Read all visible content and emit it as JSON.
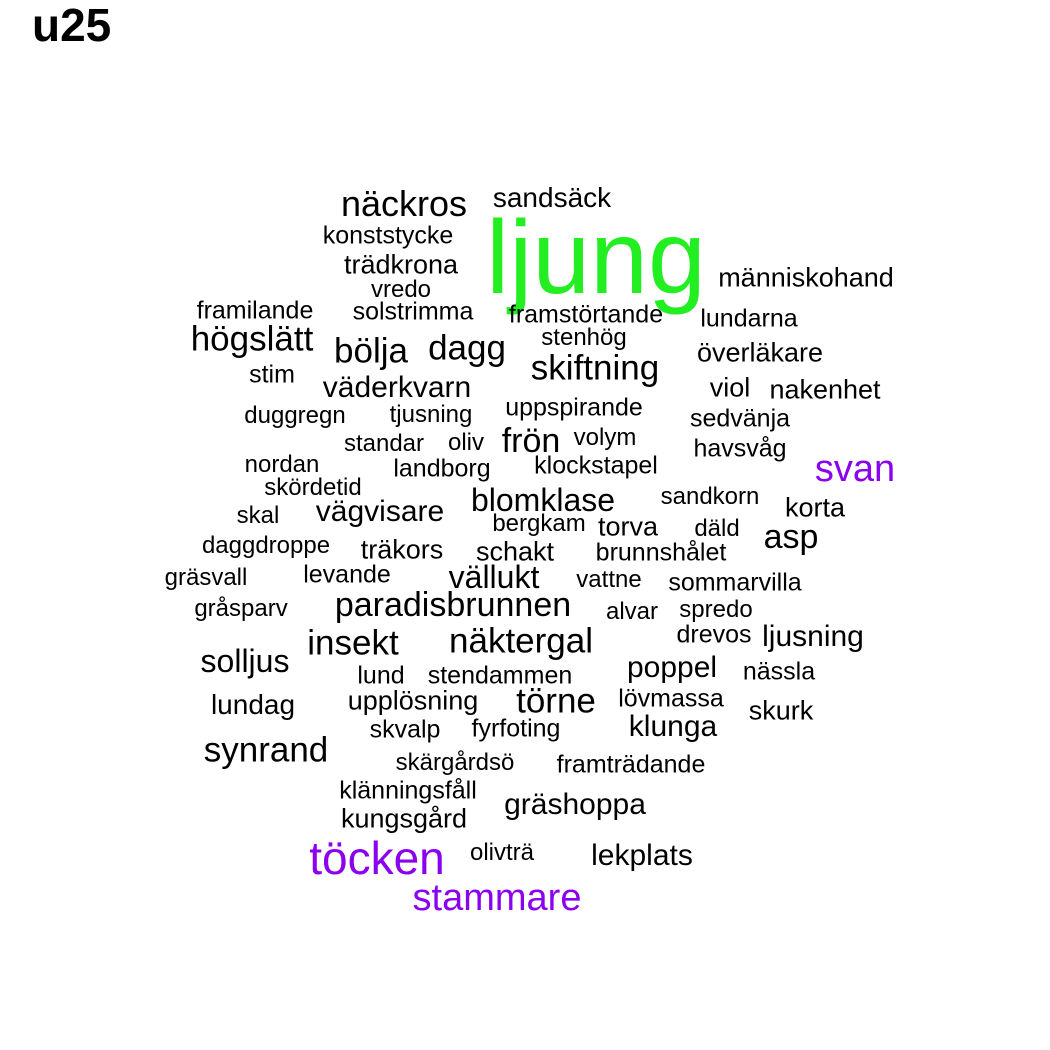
{
  "title": "u25",
  "colors": {
    "default": "#000000",
    "green": "#22ee22",
    "purple": "#8b00ee"
  },
  "words": [
    {
      "text": "ljung",
      "tone": "green"
    },
    {
      "text": "näckros"
    },
    {
      "text": "sandsäck"
    },
    {
      "text": "konststycke"
    },
    {
      "text": "trädkrona"
    },
    {
      "text": "vredo"
    },
    {
      "text": "människohand"
    },
    {
      "text": "framilande"
    },
    {
      "text": "solstrimma"
    },
    {
      "text": "framstörtande"
    },
    {
      "text": "lundarna"
    },
    {
      "text": "högslätt"
    },
    {
      "text": "bölja"
    },
    {
      "text": "dagg"
    },
    {
      "text": "stenhög"
    },
    {
      "text": "skiftning"
    },
    {
      "text": "överläkare"
    },
    {
      "text": "stim"
    },
    {
      "text": "väderkvarn"
    },
    {
      "text": "viol"
    },
    {
      "text": "nakenhet"
    },
    {
      "text": "duggregn"
    },
    {
      "text": "tjusning"
    },
    {
      "text": "uppspirande"
    },
    {
      "text": "sedvänja"
    },
    {
      "text": "standar"
    },
    {
      "text": "oliv"
    },
    {
      "text": "frön"
    },
    {
      "text": "volym"
    },
    {
      "text": "havsvåg"
    },
    {
      "text": "nordan"
    },
    {
      "text": "landborg"
    },
    {
      "text": "klockstapel"
    },
    {
      "text": "svan",
      "tone": "purple"
    },
    {
      "text": "skördetid"
    },
    {
      "text": "blomklase"
    },
    {
      "text": "sandkorn"
    },
    {
      "text": "korta"
    },
    {
      "text": "skal"
    },
    {
      "text": "vägvisare"
    },
    {
      "text": "bergkam"
    },
    {
      "text": "torva"
    },
    {
      "text": "däld"
    },
    {
      "text": "asp"
    },
    {
      "text": "daggdroppe"
    },
    {
      "text": "träkors"
    },
    {
      "text": "schakt"
    },
    {
      "text": "brunnshålet"
    },
    {
      "text": "gräsvall"
    },
    {
      "text": "levande"
    },
    {
      "text": "vällukt"
    },
    {
      "text": "vattne"
    },
    {
      "text": "sommarvilla"
    },
    {
      "text": "gråsparv"
    },
    {
      "text": "paradisbrunnen"
    },
    {
      "text": "alvar"
    },
    {
      "text": "spredo"
    },
    {
      "text": "insekt"
    },
    {
      "text": "näktergal"
    },
    {
      "text": "drevos"
    },
    {
      "text": "ljusning"
    },
    {
      "text": "solljus"
    },
    {
      "text": "lund"
    },
    {
      "text": "stendammen"
    },
    {
      "text": "poppel"
    },
    {
      "text": "nässla"
    },
    {
      "text": "lundag"
    },
    {
      "text": "upplösning"
    },
    {
      "text": "törne"
    },
    {
      "text": "lövmassa"
    },
    {
      "text": "skurk"
    },
    {
      "text": "skvalp"
    },
    {
      "text": "fyrfoting"
    },
    {
      "text": "klunga"
    },
    {
      "text": "synrand"
    },
    {
      "text": "skärgårdsö"
    },
    {
      "text": "framträdande"
    },
    {
      "text": "klänningsfåll"
    },
    {
      "text": "gräshoppa"
    },
    {
      "text": "kungsgård"
    },
    {
      "text": "töcken",
      "tone": "purple"
    },
    {
      "text": "olivträ"
    },
    {
      "text": "lekplats"
    },
    {
      "text": "stammare",
      "tone": "purple"
    }
  ]
}
